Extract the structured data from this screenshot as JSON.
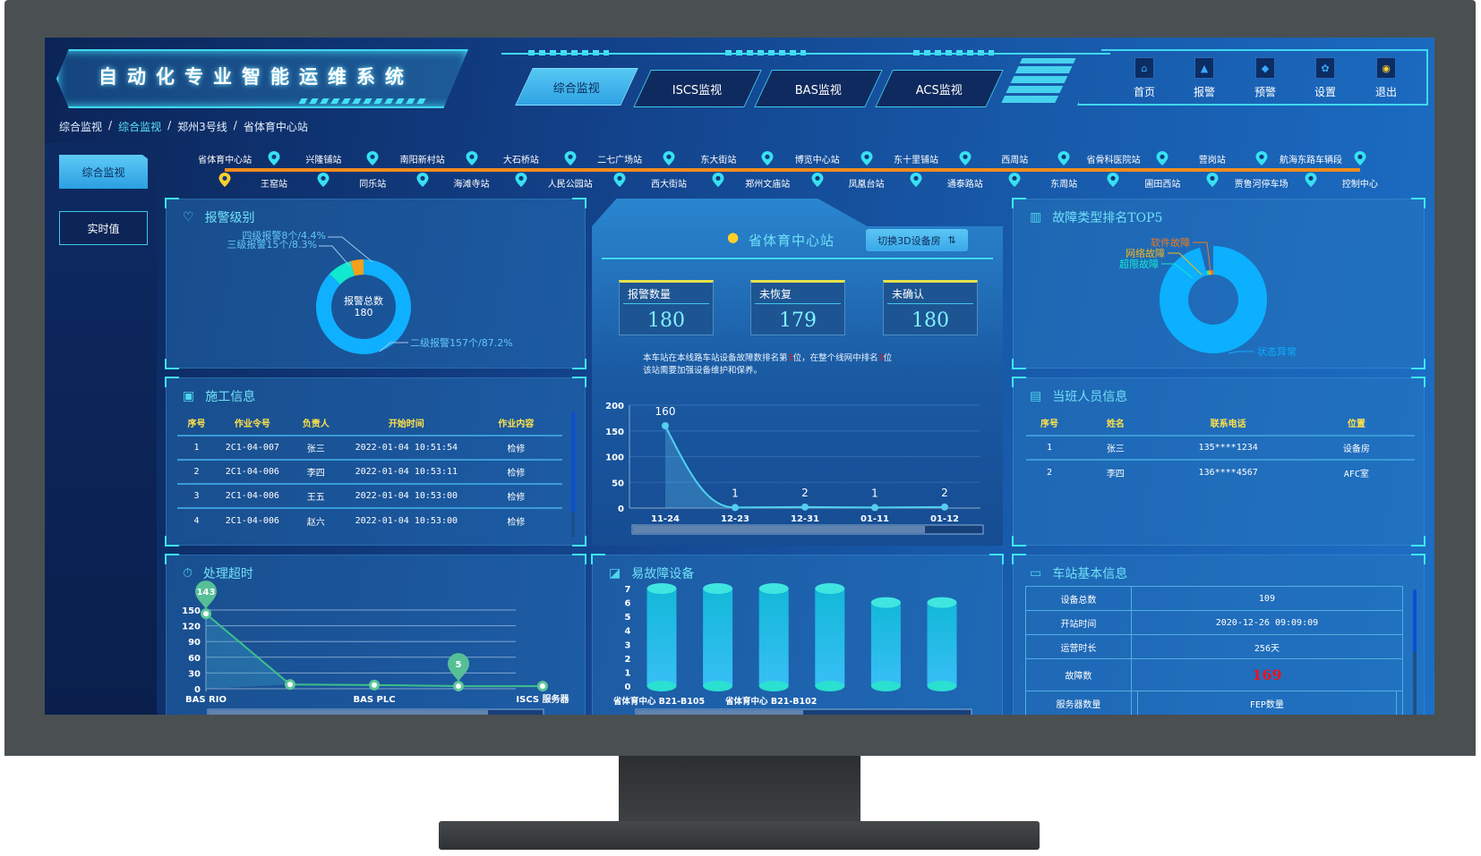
{
  "header": {
    "title": "自动化专业智能运维系统"
  },
  "tabs": [
    {
      "label": "综合监视",
      "active": true
    },
    {
      "label": "ISCS监视"
    },
    {
      "label": "BAS监视"
    },
    {
      "label": "ACS监视"
    }
  ],
  "nav": [
    {
      "label": "首页",
      "icon": "home-icon"
    },
    {
      "label": "报警",
      "icon": "alarm-icon"
    },
    {
      "label": "预警",
      "icon": "bell-icon"
    },
    {
      "label": "设置",
      "icon": "gear-icon"
    },
    {
      "label": "退出",
      "icon": "exit-icon"
    }
  ],
  "breadcrumb": [
    "综合监视",
    "综合监视",
    "郑州3号线",
    "省体育中心站"
  ],
  "sidebar": [
    {
      "label": "综合监视",
      "active": true
    },
    {
      "label": "实时值"
    }
  ],
  "stations": {
    "top": [
      "省体育中心站",
      "兴隆铺站",
      "南阳新村站",
      "大石桥站",
      "二七广场站",
      "东大街站",
      "博览中心站",
      "东十里铺站",
      "西周站",
      "省骨科医院站",
      "营岗站",
      "航海东路车辆段"
    ],
    "bottom": [
      "王窑站",
      "同乐站",
      "海滩寺站",
      "人民公园站",
      "西大街站",
      "郑州文庙站",
      "凤凰台站",
      "通泰路站",
      "东周站",
      "圃田西站",
      "贾鲁河停车场",
      "控制中心"
    ],
    "current": "王窑站"
  },
  "colors": {
    "accent": "#3ee8f5",
    "line": "#f08c1e",
    "highlight": "#ffe24a",
    "danger": "#e8141e"
  },
  "alarm_level": {
    "title": "报警级别",
    "center_label": "报警总数",
    "center_value": "180",
    "labels": [
      "四级报警8个/4.4%",
      "三级报警15个/8.3%",
      "二级报警157个/87.2%"
    ]
  },
  "station_center": {
    "name": "省体育中心站",
    "switch_button": "切换3D设备房",
    "kpis": [
      {
        "label": "报警数量",
        "value": "180"
      },
      {
        "label": "未恢复",
        "value": "179"
      },
      {
        "label": "未确认",
        "value": "180"
      }
    ],
    "note_line1_a": "本车站在本线路车站设备故障数排名第",
    "note_rank1": "3",
    "note_line1_b": "位，在整个线网中排名",
    "note_rank2": "3",
    "note_line1_c": "位",
    "note_line2": "该站需要加强设备维护和保养。"
  },
  "fault_top5": {
    "title": "故障类型排名TOP5"
  },
  "construction": {
    "title": "施工信息",
    "columns": [
      "序号",
      "作业令号",
      "负责人",
      "开始时间",
      "作业内容"
    ],
    "rows": [
      [
        "1",
        "2C1-04-007",
        "张三",
        "2022-01-04 10:51:54",
        "检修"
      ],
      [
        "2",
        "2C1-04-006",
        "李四",
        "2022-01-04 10:53:11",
        "检修"
      ],
      [
        "3",
        "2C1-04-006",
        "王五",
        "2022-01-04 10:53:00",
        "检修"
      ],
      [
        "4",
        "2C1-04-006",
        "赵六",
        "2022-01-04 10:53:00",
        "检修"
      ]
    ]
  },
  "staff": {
    "title": "当班人员信息",
    "columns": [
      "序号",
      "姓名",
      "联系电话",
      "位置"
    ],
    "rows": [
      [
        "1",
        "张三",
        "135****1234",
        "设备房"
      ],
      [
        "2",
        "李四",
        "136****4567",
        "AFC室"
      ]
    ]
  },
  "timeout": {
    "title": "处理超时"
  },
  "faulty_devices": {
    "title": "易故障设备"
  },
  "station_info": {
    "title": "车站基本信息",
    "rows": [
      {
        "label": "设备总数",
        "value": "109"
      },
      {
        "label": "开站时间",
        "value": "2020-12-26 09:09:09"
      },
      {
        "label": "运营时长",
        "value": "256天"
      },
      {
        "label": "故障数",
        "value": "169"
      }
    ],
    "last_row": [
      "服务器数量",
      "",
      "FEP数量",
      ""
    ]
  },
  "chart_data": [
    {
      "type": "pie",
      "name": "alarm_level",
      "donut": true,
      "slices": [
        {
          "label": "二级报警",
          "count": 157,
          "percent": 87.2,
          "color": "#0fb0ff"
        },
        {
          "label": "三级报警",
          "count": 15,
          "percent": 8.3,
          "color": "#11e8d0"
        },
        {
          "label": "四级报警",
          "count": 8,
          "percent": 4.4,
          "color": "#f5a01a"
        }
      ]
    },
    {
      "type": "pie",
      "name": "fault_top5",
      "donut": true,
      "slices": [
        {
          "label": "状态异常",
          "value": 96,
          "color": "#0cb0ff"
        },
        {
          "label": "超限故障",
          "value": 1.2,
          "color": "#11e8d0"
        },
        {
          "label": "网络故障",
          "value": 1.4,
          "color": "#f5b81a"
        },
        {
          "label": "软件故障",
          "value": 1.4,
          "color": "#f07a1a"
        }
      ]
    },
    {
      "type": "area",
      "name": "alarm_trend",
      "categories": [
        "11-24",
        "12-23",
        "12-31",
        "01-11",
        "01-12"
      ],
      "values": [
        160,
        1,
        2,
        1,
        2
      ],
      "ylim": [
        0,
        200
      ],
      "yticks": [
        0,
        50,
        100,
        150,
        200
      ],
      "data_labels": true
    },
    {
      "type": "line",
      "name": "timeout",
      "categories": [
        "BAS RIO",
        "",
        "BAS PLC",
        "",
        "ISCS 服务器"
      ],
      "values": [
        143,
        8,
        7,
        5,
        5
      ],
      "ylim": [
        0,
        150
      ],
      "yticks": [
        0,
        30,
        60,
        90,
        120,
        150
      ],
      "markpoints": [
        {
          "label": "143",
          "index": 0
        },
        {
          "label": "5",
          "index": 3
        }
      ],
      "grid": true
    },
    {
      "type": "bar",
      "name": "faulty_devices",
      "style": "cylinder",
      "categories": [
        "省体育中心 B21-B105",
        "",
        "省体育中心 B21-B102",
        "",
        "",
        ""
      ],
      "values": [
        7,
        7,
        7,
        7,
        6,
        6
      ],
      "ylim": [
        0,
        7
      ],
      "yticks": [
        0,
        1,
        2,
        3,
        4,
        5,
        6,
        7
      ]
    }
  ]
}
